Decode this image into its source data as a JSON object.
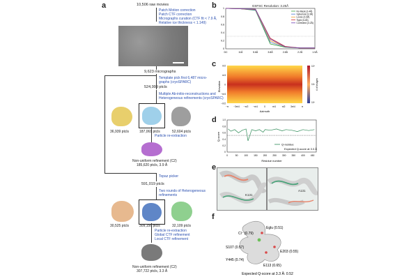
{
  "panel_labels": {
    "a": "a",
    "b": "b",
    "c": "c",
    "d": "d",
    "e": "e",
    "f": "f"
  },
  "panel_a": {
    "raw_movies": "10,506 raw movies",
    "step1": [
      "Patch Motion correction",
      "Patch CTF correction",
      "Micrographs curation (CTF fit < 7.9 Å,",
      "Relative ice thickness < 1.149)"
    ],
    "micrographs": "9,623 micrographs",
    "step2": [
      "Template pick first 6,487 micro-",
      "graphs (cryoSPARC)"
    ],
    "ptcls1": "524,999 ptcls",
    "step3": [
      "Multiple Ab-initio-reconstructions and",
      "Heterogeneous refinements (cryoSPARC)"
    ],
    "classes1": [
      "36,939 ptcls",
      "187,061 ptcls",
      "52,604 ptcls"
    ],
    "step4": "Particle re-extraction",
    "nu1": [
      "Non-uniform refinement (C2)",
      "185,620 ptcls, 3.9 Å"
    ],
    "topaz": "Topaz picker",
    "ptcls2": "591,019 ptcls",
    "step5": [
      "Two rounds of Heterogeneous",
      "refinements"
    ],
    "classes2": [
      "30,525 ptcls",
      "309,156 ptcls",
      "32,109 ptcls"
    ],
    "step6": [
      "Particle re-extraction",
      "Global CTF refinement",
      "Local CTF refinement"
    ],
    "nu2": [
      "Non-uniform refinement (C2)",
      "307,722 ptcls, 3.3 Å"
    ]
  },
  "panel_b": {
    "title": "GSFSC Resolution: 3.25Å",
    "xticks": [
      "DC",
      "11Å",
      "5.6Å",
      "3.8Å",
      "2.8Å",
      "2.2Å",
      "1.9Å"
    ],
    "yticks": [
      "0",
      "0.2",
      "0.4",
      "0.6",
      "0.8",
      "1"
    ],
    "legend": [
      "No Mask (3.4Å)",
      "Spherical (3.3Å)",
      "Loose (3.3Å)",
      "Tight (3.2Å)",
      "Corrected (3.2Å)"
    ],
    "colors": [
      "#3aa13a",
      "#4a7bd0",
      "#f0a030",
      "#d03030",
      "#6d3fb5"
    ]
  },
  "panel_c": {
    "ylabel": "Elevation",
    "xlabel": "Azimuth",
    "xticks": [
      "−π",
      "−3π/4",
      "−π/2",
      "−π/4",
      "0",
      "π/4",
      "π/2",
      "3π/4",
      "π"
    ],
    "yticks": [
      "π/2",
      "π/4",
      "0",
      "−π/4",
      "−π/2"
    ],
    "cbar_label": "# of images",
    "cbar_ticks": [
      "10⁴",
      "10²",
      "10⁰"
    ]
  },
  "panel_d": {
    "ylabel": "Q-score",
    "xlabel": "Residue number",
    "legend_line": "Q-residue",
    "legend_ref": "Expected Q-score at 3.3 Å",
    "yticks": [
      "0",
      "0.2",
      "0.4",
      "0.6",
      "0.8",
      "1.0"
    ],
    "xticks": [
      "0",
      "50",
      "100",
      "150",
      "200",
      "250",
      "300",
      "350",
      "400",
      "450"
    ]
  },
  "panel_e": {
    "label_left": "K131",
    "label_right": "A131"
  },
  "panel_f": {
    "labels": [
      "Eglu (0.51)",
      "Cl⁻ (0.79)",
      "S107 (0.57)",
      "Y445 (0.74)",
      "E203 (0.55)",
      "E113 (0.65)"
    ],
    "caption": "Expected Q-score at 3.3 Å: 0.52"
  },
  "chart_data": [
    {
      "type": "line",
      "title": "GSFSC Resolution: 3.25Å",
      "xlabel": "",
      "ylabel": "",
      "ylim": [
        0,
        1
      ],
      "x": [
        "DC",
        "11Å",
        "5.6Å",
        "3.8Å",
        "2.8Å",
        "2.2Å",
        "1.9Å"
      ],
      "series": [
        {
          "name": "No Mask (3.4Å)",
          "values": [
            1.0,
            0.99,
            0.95,
            0.12,
            0.04,
            0.02,
            0.02
          ]
        },
        {
          "name": "Spherical (3.3Å)",
          "values": [
            1.0,
            0.99,
            0.96,
            0.16,
            0.05,
            0.02,
            0.02
          ]
        },
        {
          "name": "Loose (3.3Å)",
          "values": [
            1.0,
            0.99,
            0.97,
            0.2,
            0.05,
            0.02,
            0.02
          ]
        },
        {
          "name": "Tight (3.2Å)",
          "values": [
            1.0,
            0.99,
            0.98,
            0.26,
            0.06,
            0.02,
            0.02
          ]
        },
        {
          "name": "Corrected (3.2Å)",
          "values": [
            1.0,
            0.99,
            0.98,
            0.24,
            0.05,
            0.02,
            0.02
          ]
        }
      ]
    },
    {
      "type": "line",
      "xlabel": "Residue number",
      "ylabel": "Q-score",
      "ylim": [
        0,
        1.0
      ],
      "xlim": [
        0,
        470
      ],
      "series": [
        {
          "name": "Q-residue",
          "x": [
            5,
            20,
            40,
            60,
            80,
            100,
            110,
            130,
            150,
            170,
            190,
            200,
            230,
            260,
            290,
            310,
            340,
            370,
            400,
            430,
            460
          ],
          "values": [
            0.72,
            0.65,
            0.7,
            0.6,
            0.68,
            0.72,
            0.35,
            0.7,
            0.66,
            0.7,
            0.62,
            0.7,
            0.68,
            0.72,
            0.66,
            0.7,
            0.68,
            0.64,
            0.7,
            0.67,
            0.7
          ]
        },
        {
          "name": "Expected Q-score at 3.3 Å",
          "x": [
            0,
            470
          ],
          "values": [
            0.52,
            0.52
          ]
        }
      ]
    }
  ]
}
